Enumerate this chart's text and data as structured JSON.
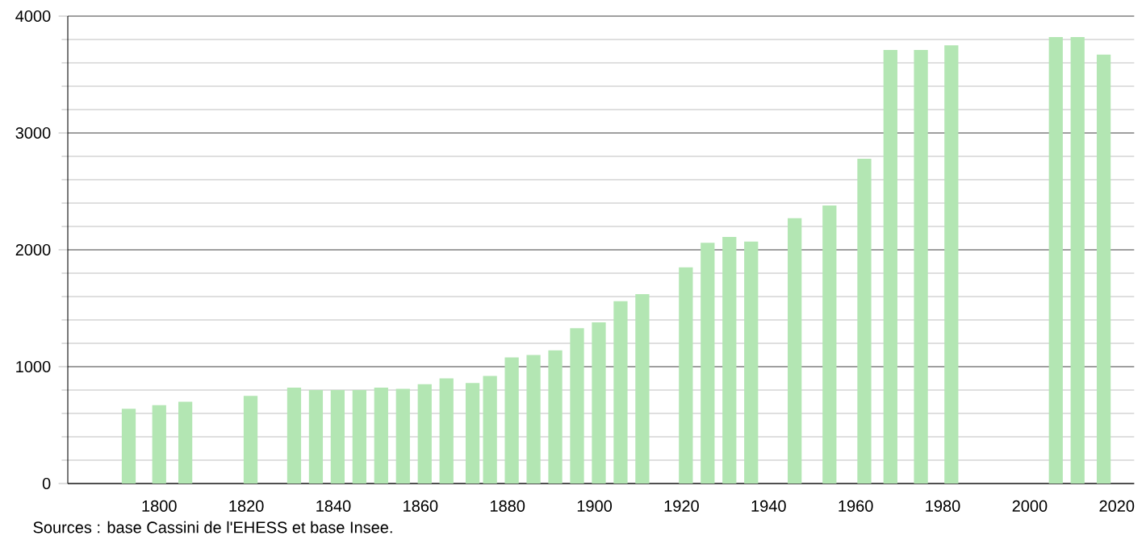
{
  "chart_data": {
    "type": "bar",
    "x": [
      1793,
      1800,
      1806,
      1821,
      1831,
      1836,
      1841,
      1846,
      1851,
      1856,
      1861,
      1866,
      1872,
      1876,
      1881,
      1886,
      1891,
      1896,
      1901,
      1906,
      1911,
      1921,
      1926,
      1931,
      1936,
      1946,
      1954,
      1962,
      1968,
      1975,
      1982,
      2006,
      2011,
      2017
    ],
    "values": [
      640,
      670,
      700,
      750,
      820,
      800,
      800,
      800,
      820,
      810,
      850,
      900,
      860,
      920,
      1080,
      1100,
      1140,
      1330,
      1380,
      1560,
      1620,
      1850,
      2060,
      2110,
      2070,
      2270,
      2380,
      2780,
      3710,
      3710,
      3750,
      3820,
      3820,
      3670
    ],
    "color": "#b3e6b3",
    "xlim": [
      1779,
      2024
    ],
    "xticks": [
      1800,
      1820,
      1840,
      1860,
      1880,
      1900,
      1920,
      1940,
      1960,
      1980,
      2000,
      2020
    ],
    "ylim": [
      0,
      4000
    ],
    "yticks": [
      0,
      1000,
      2000,
      3000,
      4000
    ],
    "grid": "y",
    "annotations": [
      "Sources : base Cassini de l'EHESS et base Insee."
    ]
  }
}
